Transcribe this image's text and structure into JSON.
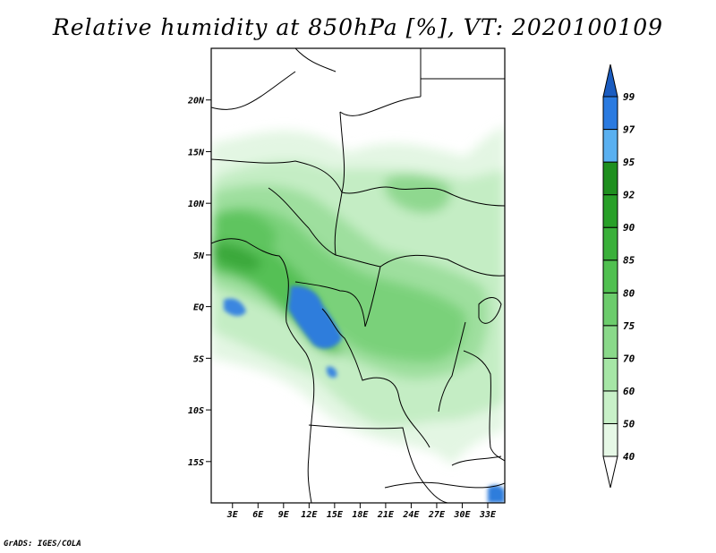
{
  "title": "Relative humidity at 850hPa [%], VT: 2020100109",
  "footer": "GrADS: IGES/COLA",
  "map": {
    "lat_range": [
      -19,
      25
    ],
    "lon_range": [
      0.5,
      35
    ],
    "lat_ticks": [
      "20N",
      "15N",
      "10N",
      "5N",
      "EQ",
      "5S",
      "10S",
      "15S"
    ],
    "lat_tick_values": [
      20,
      15,
      10,
      5,
      0,
      -5,
      -10,
      -15
    ],
    "lon_ticks": [
      "3E",
      "6E",
      "9E",
      "12E",
      "15E",
      "18E",
      "21E",
      "24E",
      "27E",
      "30E",
      "33E"
    ],
    "lon_tick_values": [
      3,
      6,
      9,
      12,
      15,
      18,
      21,
      24,
      27,
      30,
      33
    ]
  },
  "colorbar": {
    "levels": [
      "40",
      "50",
      "60",
      "70",
      "75",
      "80",
      "85",
      "90",
      "92",
      "95",
      "97",
      "99"
    ],
    "colors": [
      "#ffffff",
      "#e6f8e6",
      "#c8f0c8",
      "#a6e6a6",
      "#8ad98a",
      "#6ccc6c",
      "#50c050",
      "#3ab03a",
      "#28a028",
      "#1e8f1e",
      "#5ab0f0",
      "#2a7ae0",
      "#1a5cc0"
    ]
  }
}
